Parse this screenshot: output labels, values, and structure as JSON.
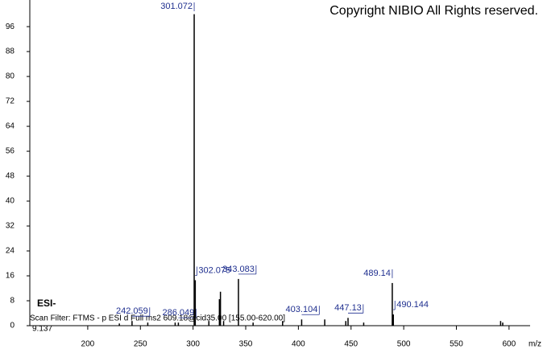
{
  "chart_data": {
    "type": "stem",
    "annotation": "Copyright NIBIO All Rights reserved.",
    "mode": "ESI-",
    "scan_filter": "Scan Filter: FTMS - p ESI d Full ms2 609.18@cid35.00 [155.00-620.00]",
    "retention": "9.137",
    "x_label": "m/z",
    "xlim": [
      145,
      620
    ],
    "xticks": [
      200,
      250,
      300,
      350,
      400,
      450,
      500,
      550,
      600
    ],
    "ylim": [
      0,
      103
    ],
    "yticks": [
      0,
      8,
      16,
      24,
      32,
      40,
      48,
      56,
      64,
      72,
      80,
      88,
      96
    ],
    "series": [
      {
        "color": "#000000",
        "label_color": "#1f2f8f",
        "labeled": true,
        "x": [
          242.059,
          286.049,
          301.072,
          302.075,
          343.083,
          403.104,
          447.13,
          489.14,
          490.144
        ],
        "values": [
          1.5,
          1,
          100,
          14.6,
          15,
          2,
          2.5,
          13.7,
          3.6
        ]
      },
      {
        "color": "#000000",
        "labeled": false,
        "x": [
          230,
          257,
          283,
          315,
          325,
          326,
          329,
          357,
          385,
          425,
          445,
          462,
          592,
          594
        ],
        "values": [
          0.7,
          1,
          1,
          1.5,
          8.5,
          10.9,
          1.5,
          1,
          1.5,
          2,
          1.5,
          1,
          1.5,
          1
        ]
      }
    ]
  }
}
